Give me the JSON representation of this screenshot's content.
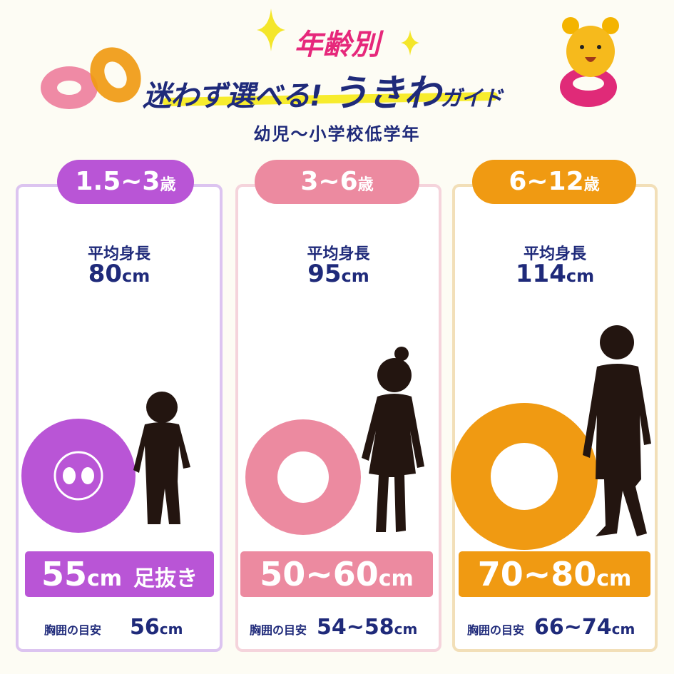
{
  "header": {
    "title_top": "年齢別",
    "title_main": "迷わず選べる!",
    "title_big": "うきわ",
    "title_small": "ガイド",
    "subtitle": "幼児～小学校低学年"
  },
  "colors": {
    "purple": "#b955d6",
    "pink": "#ec8aa0",
    "orange": "#f09a12",
    "navy": "#1f2a7a",
    "magenta": "#e6287b"
  },
  "icons": [
    "sparkle-icon",
    "float-ring-icon",
    "bear-mascot-icon",
    "child-silhouette-icon"
  ],
  "cards": [
    {
      "age": "1.5~3",
      "age_unit": "歳",
      "height_label": "平均身長",
      "height": "80",
      "height_unit": "cm",
      "size": "55",
      "size_unit": "cm",
      "size_note": "足抜き",
      "chest_label": "胸囲の目安",
      "chest": "56",
      "chest_unit": "cm"
    },
    {
      "age": "3~6",
      "age_unit": "歳",
      "height_label": "平均身長",
      "height": "95",
      "height_unit": "cm",
      "size": "50~60",
      "size_unit": "cm",
      "size_note": "",
      "chest_label": "胸囲の目安",
      "chest": "54~58",
      "chest_unit": "cm"
    },
    {
      "age": "6~12",
      "age_unit": "歳",
      "height_label": "平均身長",
      "height": "114",
      "height_unit": "cm",
      "size": "70~80",
      "size_unit": "cm",
      "size_note": "",
      "chest_label": "胸囲の目安",
      "chest": "66~74",
      "chest_unit": "cm"
    }
  ]
}
